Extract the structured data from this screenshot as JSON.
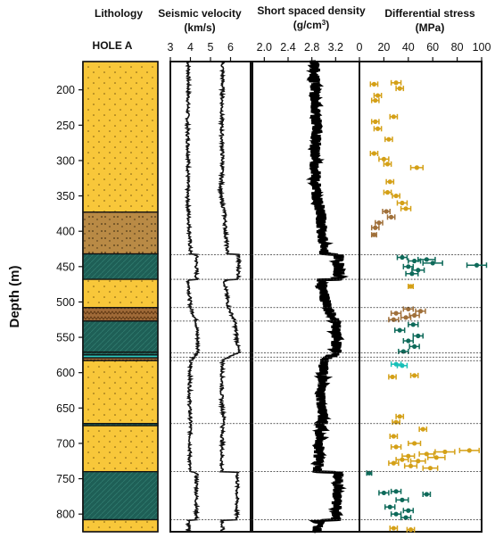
{
  "chart_data": {
    "type": "well-log",
    "hole": "HOLE A",
    "ylabel": "Depth (m)",
    "ylim": [
      160,
      825
    ],
    "yticks": [
      200,
      250,
      300,
      350,
      400,
      450,
      500,
      550,
      600,
      650,
      700,
      750,
      800
    ],
    "boundaries": [
      433,
      468,
      508,
      527,
      572,
      578,
      583,
      672,
      740,
      808
    ],
    "panels": [
      {
        "id": "lithology",
        "title": "Lithology",
        "units": [
          {
            "top": 160,
            "bottom": 373,
            "rock": "sandstone"
          },
          {
            "top": 373,
            "bottom": 432,
            "rock": "siltstone"
          },
          {
            "top": 432,
            "bottom": 468,
            "rock": "shale"
          },
          {
            "top": 468,
            "bottom": 508,
            "rock": "sandstone"
          },
          {
            "top": 508,
            "bottom": 527,
            "rock": "mudstone"
          },
          {
            "top": 527,
            "bottom": 571,
            "rock": "shale"
          },
          {
            "top": 571,
            "bottom": 575,
            "rock": "shale"
          },
          {
            "top": 575,
            "bottom": 579,
            "rock": "tuff"
          },
          {
            "top": 579,
            "bottom": 583,
            "rock": "mudstone"
          },
          {
            "top": 583,
            "bottom": 672,
            "rock": "sandstone"
          },
          {
            "top": 672,
            "bottom": 675,
            "rock": "shale"
          },
          {
            "top": 675,
            "bottom": 740,
            "rock": "sandstone"
          },
          {
            "top": 740,
            "bottom": 808,
            "rock": "shale"
          },
          {
            "top": 808,
            "bottom": 825,
            "rock": "sandstone"
          }
        ]
      },
      {
        "id": "velocity",
        "title": "Seismic velocity",
        "units": "(km/s)",
        "xlim": [
          3,
          7
        ],
        "xticks": [
          3,
          4,
          5,
          6
        ],
        "series": [
          {
            "id": "vs",
            "depth": [
              160,
              200,
              250,
              300,
              350,
              373,
              400,
              432,
              433,
              468,
              469,
              508,
              527,
              571,
              583,
              640,
              672,
              675,
              740,
              741,
              808,
              809,
              825
            ],
            "values": [
              3.9,
              3.9,
              3.85,
              3.9,
              3.85,
              3.9,
              3.95,
              4.0,
              4.3,
              4.3,
              3.9,
              4.0,
              4.3,
              4.4,
              4.0,
              3.95,
              4.0,
              4.0,
              3.95,
              4.3,
              4.3,
              3.9,
              3.9
            ]
          },
          {
            "id": "vp",
            "depth": [
              160,
              200,
              250,
              300,
              350,
              373,
              400,
              432,
              433,
              468,
              469,
              508,
              527,
              571,
              583,
              640,
              672,
              675,
              740,
              741,
              808,
              809,
              825
            ],
            "values": [
              5.6,
              5.6,
              5.55,
              5.6,
              5.5,
              5.7,
              5.75,
              5.85,
              6.4,
              6.4,
              5.7,
              5.9,
              6.2,
              6.4,
              5.6,
              5.55,
              5.7,
              5.6,
              5.55,
              6.35,
              6.3,
              5.6,
              5.6
            ]
          }
        ]
      },
      {
        "id": "density",
        "title": "Short spaced density",
        "units_main": "(g/cm",
        "units_sup": "3",
        "units_end": ")",
        "xlim": [
          1.8,
          3.6
        ],
        "xticks": [
          2.0,
          2.4,
          2.8,
          3.2
        ],
        "tick_labels": [
          "2.0",
          "2.4",
          "2.8",
          "3.2"
        ],
        "depth": [
          160,
          200,
          250,
          300,
          350,
          373,
          400,
          432,
          433,
          468,
          469,
          508,
          527,
          571,
          583,
          640,
          672,
          675,
          740,
          741,
          808,
          809,
          825
        ],
        "values": [
          2.85,
          2.85,
          2.88,
          2.85,
          2.88,
          2.95,
          2.97,
          3.0,
          3.25,
          3.25,
          2.95,
          3.05,
          3.2,
          3.22,
          3.0,
          2.95,
          3.0,
          2.95,
          2.9,
          3.25,
          3.2,
          2.9,
          2.9
        ]
      },
      {
        "id": "stress",
        "title": "Differential stress",
        "units": "(MPa)",
        "xlim": [
          0,
          100
        ],
        "xticks": [
          0,
          20,
          40,
          60,
          80,
          100
        ],
        "colors": {
          "sandstone": "#D4A017",
          "siltstone": "#A0703A",
          "mudstone": "#A0703A",
          "shale": "#0E6A5A",
          "tuff": "#18C0B8"
        },
        "points": [
          {
            "depth": 192,
            "value": 12,
            "err": 3,
            "rock": "sandstone"
          },
          {
            "depth": 190,
            "value": 30,
            "err": 4,
            "rock": "sandstone"
          },
          {
            "depth": 198,
            "value": 33,
            "err": 3,
            "rock": "sandstone"
          },
          {
            "depth": 208,
            "value": 15,
            "err": 3,
            "rock": "sandstone"
          },
          {
            "depth": 215,
            "value": 13,
            "err": 3,
            "rock": "sandstone"
          },
          {
            "depth": 245,
            "value": 13,
            "err": 3,
            "rock": "sandstone"
          },
          {
            "depth": 255,
            "value": 15,
            "err": 3,
            "rock": "sandstone"
          },
          {
            "depth": 238,
            "value": 28,
            "err": 3,
            "rock": "sandstone"
          },
          {
            "depth": 270,
            "value": 24,
            "err": 3,
            "rock": "sandstone"
          },
          {
            "depth": 290,
            "value": 12,
            "err": 3,
            "rock": "sandstone"
          },
          {
            "depth": 298,
            "value": 20,
            "err": 4,
            "rock": "sandstone"
          },
          {
            "depth": 305,
            "value": 23,
            "err": 3,
            "rock": "sandstone"
          },
          {
            "depth": 310,
            "value": 47,
            "err": 5,
            "rock": "sandstone"
          },
          {
            "depth": 330,
            "value": 25,
            "err": 3,
            "rock": "sandstone"
          },
          {
            "depth": 345,
            "value": 23,
            "err": 3,
            "rock": "sandstone"
          },
          {
            "depth": 350,
            "value": 30,
            "err": 3,
            "rock": "sandstone"
          },
          {
            "depth": 360,
            "value": 35,
            "err": 4,
            "rock": "sandstone"
          },
          {
            "depth": 368,
            "value": 38,
            "err": 4,
            "rock": "sandstone"
          },
          {
            "depth": 372,
            "value": 22,
            "err": 3,
            "rock": "siltstone"
          },
          {
            "depth": 380,
            "value": 26,
            "err": 3,
            "rock": "siltstone"
          },
          {
            "depth": 388,
            "value": 16,
            "err": 3,
            "rock": "siltstone"
          },
          {
            "depth": 395,
            "value": 13,
            "err": 3,
            "rock": "siltstone"
          },
          {
            "depth": 405,
            "value": 12,
            "err": 2,
            "rock": "siltstone"
          },
          {
            "depth": 437,
            "value": 35,
            "err": 4,
            "rock": "shale"
          },
          {
            "depth": 440,
            "value": 55,
            "err": 7,
            "rock": "shale"
          },
          {
            "depth": 442,
            "value": 45,
            "err": 5,
            "rock": "shale"
          },
          {
            "depth": 445,
            "value": 60,
            "err": 8,
            "rock": "shale"
          },
          {
            "depth": 448,
            "value": 96,
            "err": 8,
            "rock": "shale"
          },
          {
            "depth": 450,
            "value": 40,
            "err": 4,
            "rock": "shale"
          },
          {
            "depth": 455,
            "value": 48,
            "err": 5,
            "rock": "shale"
          },
          {
            "depth": 460,
            "value": 43,
            "err": 5,
            "rock": "shale"
          },
          {
            "depth": 478,
            "value": 42,
            "err": 2,
            "rock": "sandstone"
          },
          {
            "depth": 510,
            "value": 40,
            "err": 4,
            "rock": "mudstone"
          },
          {
            "depth": 513,
            "value": 50,
            "err": 4,
            "rock": "mudstone"
          },
          {
            "depth": 516,
            "value": 30,
            "err": 4,
            "rock": "mudstone"
          },
          {
            "depth": 519,
            "value": 45,
            "err": 4,
            "rock": "mudstone"
          },
          {
            "depth": 522,
            "value": 38,
            "err": 4,
            "rock": "mudstone"
          },
          {
            "depth": 525,
            "value": 28,
            "err": 4,
            "rock": "mudstone"
          },
          {
            "depth": 532,
            "value": 44,
            "err": 4,
            "rock": "shale"
          },
          {
            "depth": 540,
            "value": 33,
            "err": 4,
            "rock": "shale"
          },
          {
            "depth": 548,
            "value": 48,
            "err": 4,
            "rock": "shale"
          },
          {
            "depth": 555,
            "value": 40,
            "err": 4,
            "rock": "shale"
          },
          {
            "depth": 563,
            "value": 45,
            "err": 4,
            "rock": "shale"
          },
          {
            "depth": 570,
            "value": 36,
            "err": 4,
            "rock": "shale"
          },
          {
            "depth": 588,
            "value": 30,
            "err": 4,
            "rock": "tuff"
          },
          {
            "depth": 590,
            "value": 35,
            "err": 4,
            "rock": "tuff"
          },
          {
            "depth": 606,
            "value": 27,
            "err": 3,
            "rock": "sandstone"
          },
          {
            "depth": 604,
            "value": 45,
            "err": 3,
            "rock": "sandstone"
          },
          {
            "depth": 670,
            "value": 30,
            "err": 3,
            "rock": "sandstone"
          },
          {
            "depth": 662,
            "value": 33,
            "err": 3,
            "rock": "sandstone"
          },
          {
            "depth": 680,
            "value": 52,
            "err": 3,
            "rock": "sandstone"
          },
          {
            "depth": 690,
            "value": 28,
            "err": 3,
            "rock": "sandstone"
          },
          {
            "depth": 700,
            "value": 45,
            "err": 5,
            "rock": "sandstone"
          },
          {
            "depth": 705,
            "value": 30,
            "err": 4,
            "rock": "sandstone"
          },
          {
            "depth": 710,
            "value": 90,
            "err": 8,
            "rock": "sandstone"
          },
          {
            "depth": 712,
            "value": 70,
            "err": 8,
            "rock": "sandstone"
          },
          {
            "depth": 715,
            "value": 55,
            "err": 6,
            "rock": "sandstone"
          },
          {
            "depth": 718,
            "value": 40,
            "err": 5,
            "rock": "sandstone"
          },
          {
            "depth": 720,
            "value": 63,
            "err": 7,
            "rock": "sandstone"
          },
          {
            "depth": 723,
            "value": 35,
            "err": 5,
            "rock": "sandstone"
          },
          {
            "depth": 725,
            "value": 48,
            "err": 6,
            "rock": "sandstone"
          },
          {
            "depth": 728,
            "value": 28,
            "err": 4,
            "rock": "sandstone"
          },
          {
            "depth": 732,
            "value": 42,
            "err": 5,
            "rock": "sandstone"
          },
          {
            "depth": 735,
            "value": 58,
            "err": 6,
            "rock": "sandstone"
          },
          {
            "depth": 742,
            "value": 8,
            "err": 2,
            "rock": "shale"
          },
          {
            "depth": 768,
            "value": 30,
            "err": 4,
            "rock": "shale"
          },
          {
            "depth": 770,
            "value": 20,
            "err": 4,
            "rock": "shale"
          },
          {
            "depth": 772,
            "value": 55,
            "err": 3,
            "rock": "shale"
          },
          {
            "depth": 780,
            "value": 35,
            "err": 5,
            "rock": "shale"
          },
          {
            "depth": 790,
            "value": 25,
            "err": 4,
            "rock": "shale"
          },
          {
            "depth": 795,
            "value": 40,
            "err": 4,
            "rock": "shale"
          },
          {
            "depth": 800,
            "value": 30,
            "err": 4,
            "rock": "shale"
          },
          {
            "depth": 805,
            "value": 38,
            "err": 4,
            "rock": "shale"
          },
          {
            "depth": 820,
            "value": 28,
            "err": 3,
            "rock": "sandstone"
          },
          {
            "depth": 822,
            "value": 42,
            "err": 3,
            "rock": "sandstone"
          }
        ]
      }
    ]
  }
}
